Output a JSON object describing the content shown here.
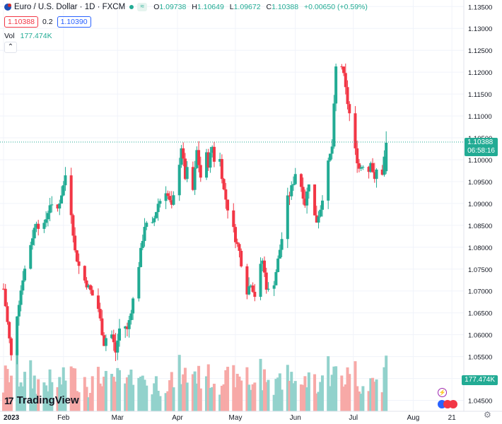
{
  "header": {
    "symbol_title": "Euro / U.S. Dollar · 1D · FXCM",
    "ohlc": {
      "open_label": "O",
      "open": "1.09738",
      "high_label": "H",
      "high": "1.10649",
      "low_label": "L",
      "low": "1.09672",
      "close_label": "C",
      "close": "1.10388",
      "change": "+0.00650 (+0.59%)"
    },
    "sell_price": "1.10388",
    "spread": "0.2",
    "buy_price": "1.10390",
    "volume_label": "Vol",
    "volume_value": "177.474K"
  },
  "price_axis": {
    "last_price": "1.10388",
    "countdown": "06:58:16",
    "volume_tag": "177.474K"
  },
  "brand": {
    "name": "TradingView"
  },
  "colors": {
    "up": "#22ab94",
    "down": "#f23645",
    "vol_up": "#92d2cc",
    "vol_down": "#f7a9a7"
  },
  "chart_data": {
    "type": "candlestick",
    "title": "Euro / U.S. Dollar · 1D · FXCM",
    "y_ticks": [
      "1.13500",
      "1.13000",
      "1.12500",
      "1.12000",
      "1.11500",
      "1.11000",
      "1.10500",
      "1.10000",
      "1.09500",
      "1.09000",
      "1.08500",
      "1.08000",
      "1.07500",
      "1.07000",
      "1.06500",
      "1.06000",
      "1.05500",
      "1.05000",
      "1.04500"
    ],
    "ylim": [
      1.0425,
      1.1365
    ],
    "x_ticks": [
      {
        "label": "2023",
        "day": 0
      },
      {
        "label": "Feb",
        "day": 31
      },
      {
        "label": "Mar",
        "day": 59
      },
      {
        "label": "Apr",
        "day": 90
      },
      {
        "label": "May",
        "day": 120
      },
      {
        "label": "Jun",
        "day": 151
      },
      {
        "label": "Jul",
        "day": 181
      },
      {
        "label": "Aug",
        "day": 212
      },
      {
        "label": "21",
        "day": 232
      }
    ],
    "waypoints": [
      [
        0,
        1.0705
      ],
      [
        4,
        1.055
      ],
      [
        6,
        1.062
      ],
      [
        10,
        1.073
      ],
      [
        13,
        1.079
      ],
      [
        17,
        1.086
      ],
      [
        20,
        1.083
      ],
      [
        24,
        1.09
      ],
      [
        27,
        1.087
      ],
      [
        31,
        1.094
      ],
      [
        33,
        1.099
      ],
      [
        35,
        1.088
      ],
      [
        37,
        1.079
      ],
      [
        40,
        1.074
      ],
      [
        45,
        1.07
      ],
      [
        49,
        1.066
      ],
      [
        52,
        1.058
      ],
      [
        55,
        1.062
      ],
      [
        58,
        1.056
      ],
      [
        61,
        1.064
      ],
      [
        64,
        1.061
      ],
      [
        67,
        1.068
      ],
      [
        70,
        1.076
      ],
      [
        73,
        1.085
      ],
      [
        77,
        1.085
      ],
      [
        80,
        1.09
      ],
      [
        84,
        1.093
      ],
      [
        87,
        1.089
      ],
      [
        90,
        1.096
      ],
      [
        92,
        1.103
      ],
      [
        94,
        1.096
      ],
      [
        96,
        1.099
      ],
      [
        98,
        1.093
      ],
      [
        100,
        1.102
      ],
      [
        102,
        1.096
      ],
      [
        104,
        1.103
      ],
      [
        106,
        1.099
      ],
      [
        108,
        1.103
      ],
      [
        110,
        1.097
      ],
      [
        112,
        1.1
      ],
      [
        114,
        1.093
      ],
      [
        116,
        1.089
      ],
      [
        118,
        1.086
      ],
      [
        120,
        1.082
      ],
      [
        122,
        1.079
      ],
      [
        124,
        1.074
      ],
      [
        126,
        1.07
      ],
      [
        128,
        1.072
      ],
      [
        130,
        1.069
      ],
      [
        132,
        1.074
      ],
      [
        134,
        1.077
      ],
      [
        136,
        1.071
      ],
      [
        138,
        1.069
      ],
      [
        140,
        1.072
      ],
      [
        142,
        1.077
      ],
      [
        144,
        1.082
      ],
      [
        146,
        1.09
      ],
      [
        148,
        1.092
      ],
      [
        150,
        1.095
      ],
      [
        152,
        1.099
      ],
      [
        154,
        1.094
      ],
      [
        156,
        1.09
      ],
      [
        158,
        1.095
      ],
      [
        160,
        1.088
      ],
      [
        162,
        1.086
      ],
      [
        164,
        1.089
      ],
      [
        166,
        1.094
      ],
      [
        168,
        1.099
      ],
      [
        170,
        1.103
      ],
      [
        172,
        1.121
      ],
      [
        174,
        1.124
      ],
      [
        176,
        1.119
      ],
      [
        178,
        1.113
      ],
      [
        180,
        1.108
      ],
      [
        182,
        1.102
      ],
      [
        184,
        1.098
      ],
      [
        186,
        1.099
      ],
      [
        188,
        1.095
      ],
      [
        190,
        1.1
      ],
      [
        192,
        1.095
      ],
      [
        194,
        1.1
      ],
      [
        196,
        1.097
      ],
      [
        198,
        1.1039
      ]
    ],
    "volume_ylim": [
      0,
      320000
    ],
    "series": [
      {
        "name": "Vol",
        "last": "177.474K"
      }
    ]
  }
}
